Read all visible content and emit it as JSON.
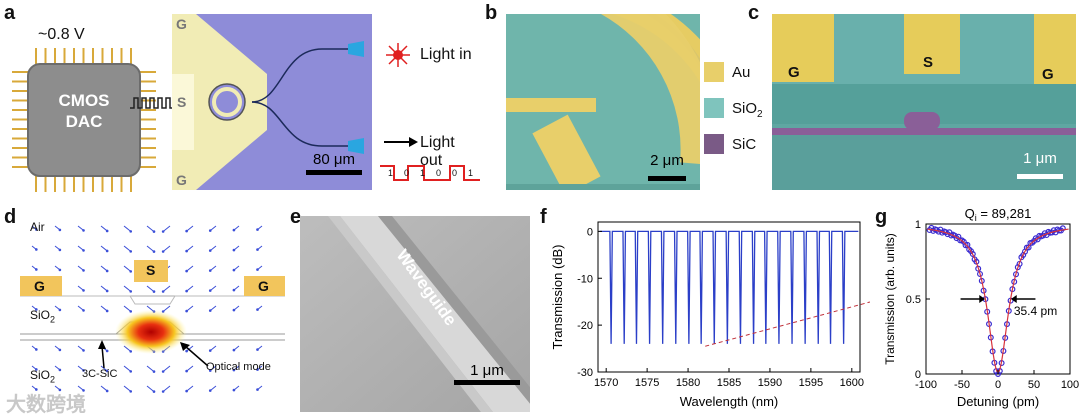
{
  "panel_labels": {
    "a": "a",
    "b": "b",
    "c": "c",
    "d": "d",
    "e": "e",
    "f": "f",
    "g": "g"
  },
  "panel_a": {
    "voltage": "~0.8 V",
    "chip_line1": "CMOS",
    "chip_line2": "DAC",
    "g_top": "G",
    "s_label": "S",
    "g_bottom": "G",
    "scale": "80 μm",
    "light_in": "Light in",
    "light_out": "Light out",
    "bits": [
      "1",
      "0",
      "1",
      "0",
      "0",
      "1"
    ]
  },
  "panel_b": {
    "scale": "2 μm"
  },
  "legend": {
    "items": [
      {
        "label": "Au",
        "color": "#e8cf6a"
      },
      {
        "label": "SiO",
        "sub": "2",
        "color": "#7fc4bd"
      },
      {
        "label": "SiC",
        "color": "#7a5a86"
      }
    ]
  },
  "panel_c": {
    "g_left": "G",
    "s": "S",
    "g_right": "G",
    "scale": "1 μm"
  },
  "panel_d": {
    "air": "Air",
    "g_left": "G",
    "s": "S",
    "g_right": "G",
    "sio2_upper": "SiO",
    "sio2_upper_sub": "2",
    "sio2_lower": "SiO",
    "sio2_lower_sub": "2",
    "sic_label": "3C-SiC",
    "mode_label": "Optical mode"
  },
  "panel_e": {
    "waveguide": "Waveguide",
    "scale": "1 μm"
  },
  "watermark": "大数跨境",
  "chart_data": [
    {
      "type": "line",
      "panel": "f",
      "xlabel": "Wavelength (nm)",
      "ylabel": "Transmission (dB)",
      "xlim": [
        1569,
        1601
      ],
      "ylim": [
        -30,
        2
      ],
      "xticks": [
        1570,
        1575,
        1580,
        1585,
        1590,
        1595,
        1600
      ],
      "yticks": [
        0,
        -10,
        -20,
        -30
      ],
      "baseline": 0,
      "resonances": [
        1570.6,
        1572.2,
        1573.7,
        1575.3,
        1576.9,
        1578.5,
        1580.1,
        1581.6,
        1583.2,
        1584.8,
        1586.4,
        1588.0,
        1589.5,
        1591.1,
        1592.7,
        1594.3,
        1595.9,
        1597.4,
        1599.0
      ],
      "dip_depth": -24,
      "highlight": [
        1580.8,
        1582.1
      ],
      "color": "#2b3fc8"
    },
    {
      "type": "scatter",
      "panel": "g",
      "title": "Q",
      "title_sub": "i",
      "title_value": " = 89,281",
      "xlabel": "Detuning (pm)",
      "ylabel": "Transmission (arb. units)",
      "xlim": [
        -100,
        100
      ],
      "ylim": [
        0,
        1
      ],
      "xticks": [
        -100,
        -50,
        0,
        50,
        100
      ],
      "yticks": [
        0,
        0.5,
        1
      ],
      "fwhm_pm": 35.4,
      "fwhm_label": "35.4 pm",
      "data_color": "#3a2bd0",
      "fit_color": "#d8323c"
    }
  ]
}
